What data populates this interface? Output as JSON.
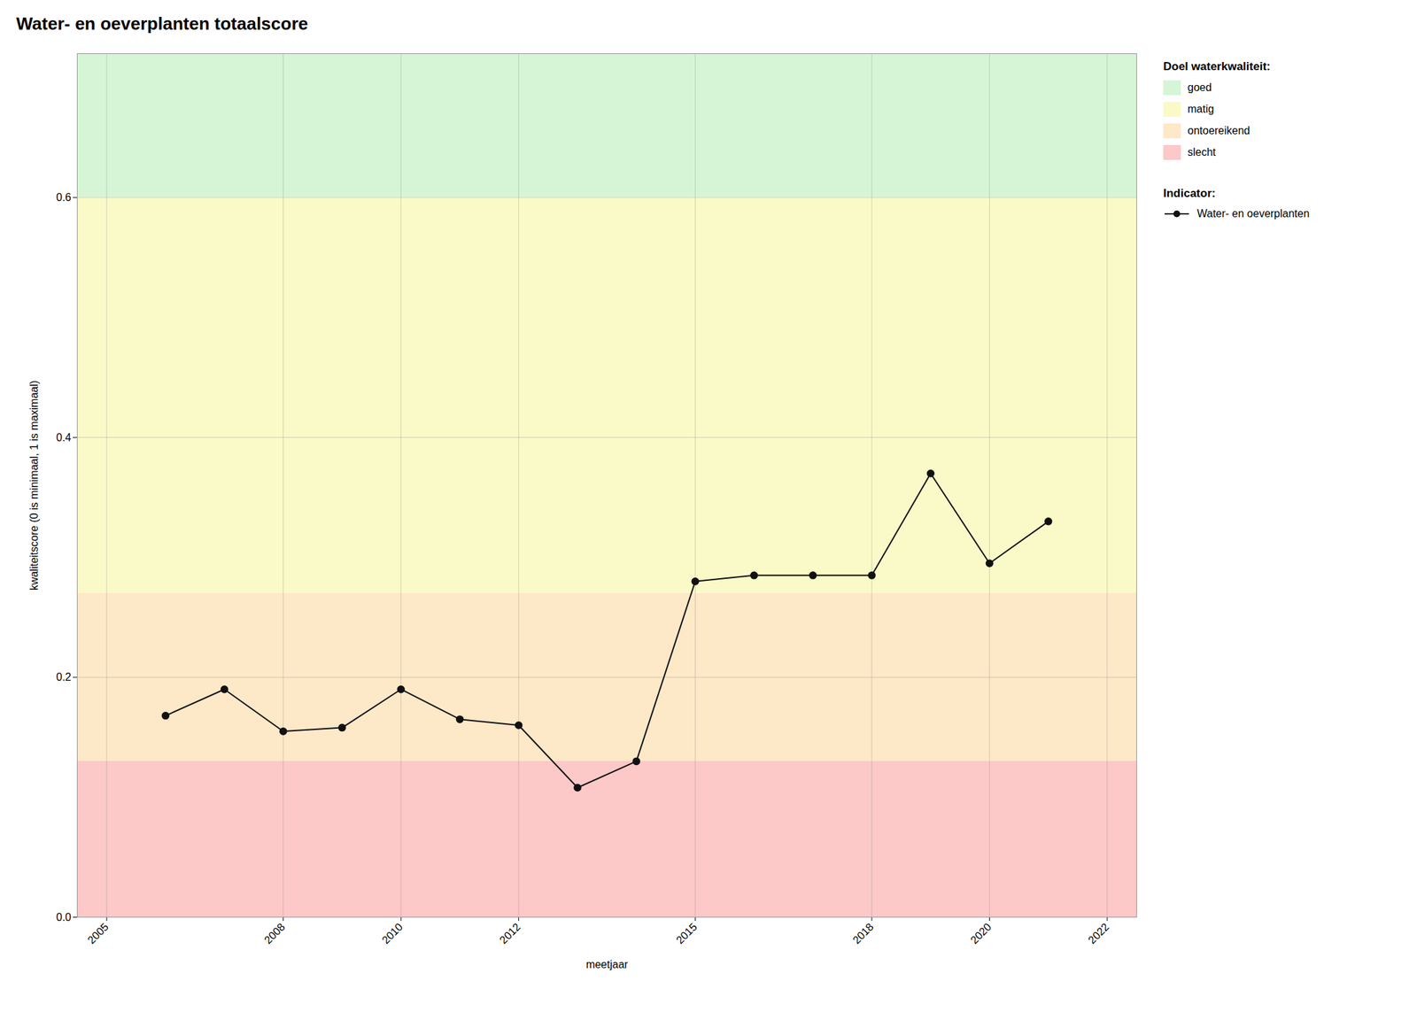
{
  "chart_data": {
    "type": "line",
    "title": "Water- en oeverplanten totaalscore",
    "xlabel": "meetjaar",
    "ylabel": "kwaliteitscore (0 is minimaal, 1 is maximaal)",
    "x": [
      2006,
      2007,
      2008,
      2009,
      2010,
      2011,
      2012,
      2013,
      2014,
      2015,
      2016,
      2017,
      2018,
      2019,
      2020,
      2021
    ],
    "series": [
      {
        "name": "Water- en oeverplanten",
        "color": "#111111",
        "marker": "circle",
        "values": [
          0.168,
          0.19,
          0.155,
          0.158,
          0.19,
          0.165,
          0.16,
          0.108,
          0.13,
          0.28,
          0.285,
          0.285,
          0.285,
          0.37,
          0.295,
          0.33
        ]
      }
    ],
    "legend": "right",
    "legend_title": "Indicator:",
    "bands": {
      "title": "Doel waterkwaliteit:",
      "items": [
        {
          "name": "goed",
          "color": "#d6f5d6",
          "from": 0.6,
          "to": 0.72
        },
        {
          "name": "matig",
          "color": "#fafac8",
          "from": 0.27,
          "to": 0.6
        },
        {
          "name": "ontoereikend",
          "color": "#fde8c8",
          "from": 0.13,
          "to": 0.27
        },
        {
          "name": "slecht",
          "color": "#fcc8c8",
          "from": 0.0,
          "to": 0.13
        }
      ]
    },
    "xlim": [
      2004.5,
      2022.5
    ],
    "xticks": [
      2005,
      2008,
      2010,
      2012,
      2015,
      2018,
      2020,
      2022
    ],
    "ylim": [
      0.0,
      0.72
    ],
    "yticks": [
      {
        "value": 0.0,
        "label": "0.0"
      },
      0.2,
      0.4,
      0.6
    ],
    "grid": true
  }
}
